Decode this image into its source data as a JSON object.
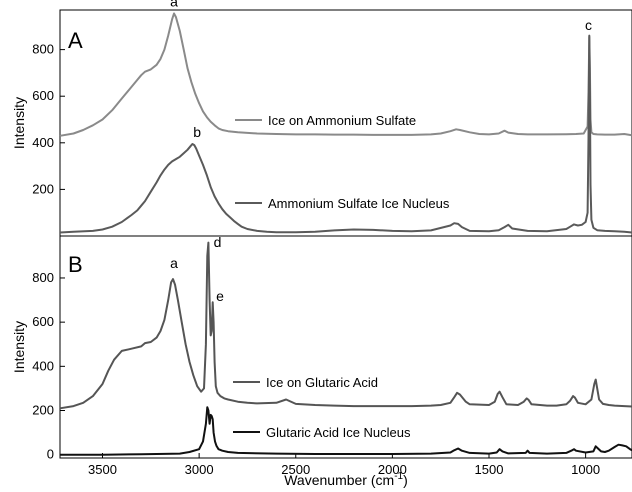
{
  "chart_data": [
    {
      "type": "line",
      "panel_label": "A",
      "xlabel": "Wavenumber (cm",
      "xlabel_sup": "-1",
      "xlabel_end": ")",
      "ylabel": "Intensity",
      "xlim": [
        3720,
        760
      ],
      "x_reversed": true,
      "ylim": [
        0,
        970
      ],
      "yticks": [
        200,
        400,
        600,
        800
      ],
      "grid": false,
      "series": [
        {
          "name": "Ice on Ammonium Sulfate",
          "color": "#8a8a8a",
          "x": [
            3720,
            3650,
            3600,
            3550,
            3500,
            3450,
            3400,
            3350,
            3320,
            3300,
            3280,
            3250,
            3220,
            3200,
            3180,
            3160,
            3140,
            3130,
            3120,
            3100,
            3080,
            3060,
            3040,
            3020,
            3000,
            2980,
            2960,
            2940,
            2920,
            2900,
            2880,
            2850,
            2800,
            2700,
            2600,
            2500,
            2400,
            2300,
            2200,
            2100,
            2000,
            1900,
            1800,
            1750,
            1700,
            1670,
            1650,
            1600,
            1550,
            1500,
            1450,
            1420,
            1400,
            1350,
            1300,
            1200,
            1100,
            1050,
            1010,
            990,
            985,
            981,
            978,
            975,
            970,
            960,
            940,
            900,
            850,
            800,
            760
          ],
          "y": [
            430,
            440,
            455,
            475,
            500,
            540,
            590,
            640,
            670,
            690,
            705,
            715,
            735,
            760,
            800,
            860,
            930,
            955,
            940,
            880,
            800,
            720,
            660,
            610,
            570,
            535,
            510,
            490,
            475,
            462,
            455,
            450,
            445,
            440,
            438,
            436,
            436,
            435,
            435,
            434,
            434,
            434,
            436,
            440,
            450,
            458,
            455,
            445,
            438,
            436,
            440,
            452,
            444,
            438,
            436,
            436,
            437,
            438,
            440,
            470,
            620,
            855,
            720,
            500,
            445,
            438,
            436,
            435,
            435,
            438,
            432
          ]
        },
        {
          "name": "Ammonium Sulfate Ice Nucleus",
          "color": "#5a5a5a",
          "x": [
            3720,
            3650,
            3550,
            3500,
            3450,
            3400,
            3350,
            3320,
            3300,
            3280,
            3250,
            3220,
            3200,
            3180,
            3160,
            3140,
            3120,
            3100,
            3080,
            3060,
            3045,
            3035,
            3025,
            3015,
            3000,
            2980,
            2960,
            2940,
            2920,
            2900,
            2880,
            2860,
            2840,
            2820,
            2800,
            2780,
            2750,
            2700,
            2650,
            2600,
            2500,
            2400,
            2300,
            2200,
            2100,
            2000,
            1900,
            1800,
            1700,
            1680,
            1660,
            1640,
            1600,
            1500,
            1450,
            1420,
            1400,
            1380,
            1300,
            1200,
            1100,
            1080,
            1060,
            1040,
            1020,
            1000,
            990,
            985,
            981,
            978,
            975,
            970,
            960,
            940,
            900,
            850,
            800,
            760
          ],
          "y": [
            15,
            18,
            22,
            28,
            40,
            60,
            90,
            110,
            130,
            150,
            190,
            230,
            260,
            285,
            305,
            320,
            330,
            340,
            355,
            370,
            385,
            395,
            390,
            375,
            345,
            305,
            260,
            210,
            170,
            140,
            115,
            95,
            80,
            65,
            52,
            40,
            30,
            22,
            18,
            16,
            16,
            18,
            24,
            28,
            26,
            22,
            20,
            24,
            45,
            55,
            52,
            38,
            22,
            20,
            25,
            38,
            48,
            32,
            22,
            20,
            30,
            40,
            50,
            45,
            48,
            60,
            100,
            420,
            860,
            620,
            220,
            70,
            35,
            25,
            22,
            20,
            18,
            15
          ]
        }
      ],
      "peak_labels": [
        {
          "text": "a",
          "x": 3130,
          "y": 985
        },
        {
          "text": "b",
          "x": 3010,
          "y": 425
        },
        {
          "text": "c",
          "x": 985,
          "y": 885
        }
      ]
    },
    {
      "type": "line",
      "panel_label": "B",
      "xlabel": "Wavenumber (cm",
      "xlabel_sup": "-1",
      "xlabel_end": ")",
      "ylabel": "Intensity",
      "xlim": [
        3720,
        760
      ],
      "x_reversed": true,
      "xticks": [
        3500,
        3000,
        2500,
        2000,
        1500,
        1000
      ],
      "ylim": [
        -15,
        990
      ],
      "yticks": [
        0,
        200,
        400,
        600,
        800
      ],
      "grid": false,
      "series": [
        {
          "name": "Ice on Glutaric Acid",
          "color": "#555555",
          "x": [
            3720,
            3650,
            3600,
            3550,
            3500,
            3470,
            3440,
            3400,
            3350,
            3300,
            3280,
            3250,
            3220,
            3200,
            3180,
            3160,
            3145,
            3135,
            3125,
            3110,
            3090,
            3070,
            3050,
            3030,
            3010,
            2990,
            2975,
            2965,
            2958,
            2952,
            2946,
            2940,
            2935,
            2930,
            2925,
            2920,
            2914,
            2905,
            2890,
            2870,
            2850,
            2800,
            2750,
            2700,
            2600,
            2550,
            2500,
            2400,
            2300,
            2200,
            2100,
            2000,
            1900,
            1800,
            1750,
            1700,
            1680,
            1665,
            1650,
            1620,
            1600,
            1500,
            1470,
            1455,
            1445,
            1430,
            1410,
            1350,
            1320,
            1305,
            1295,
            1280,
            1200,
            1150,
            1100,
            1080,
            1065,
            1055,
            1040,
            1000,
            970,
            955,
            948,
            940,
            930,
            910,
            880,
            850,
            800,
            760
          ],
          "y": [
            210,
            220,
            235,
            265,
            320,
            380,
            430,
            470,
            480,
            490,
            505,
            510,
            530,
            560,
            610,
            700,
            780,
            795,
            770,
            700,
            600,
            500,
            420,
            360,
            310,
            285,
            300,
            500,
            900,
            960,
            700,
            540,
            560,
            690,
            600,
            420,
            310,
            280,
            265,
            255,
            250,
            240,
            235,
            232,
            235,
            250,
            230,
            225,
            222,
            220,
            220,
            220,
            220,
            222,
            225,
            235,
            260,
            280,
            272,
            240,
            228,
            225,
            240,
            275,
            285,
            260,
            228,
            225,
            240,
            255,
            248,
            228,
            222,
            222,
            228,
            245,
            265,
            258,
            235,
            228,
            250,
            320,
            340,
            300,
            250,
            230,
            225,
            222,
            220,
            218
          ]
        },
        {
          "name": "Glutaric Acid Ice Nucleus",
          "color": "#111111",
          "x": [
            3720,
            3500,
            3300,
            3100,
            3050,
            3000,
            2980,
            2965,
            2958,
            2952,
            2946,
            2940,
            2935,
            2930,
            2925,
            2918,
            2910,
            2900,
            2880,
            2850,
            2800,
            2600,
            2400,
            2200,
            2000,
            1800,
            1700,
            1680,
            1660,
            1640,
            1600,
            1500,
            1460,
            1445,
            1430,
            1400,
            1310,
            1300,
            1290,
            1200,
            1100,
            1070,
            1060,
            1050,
            1000,
            960,
            948,
            938,
            920,
            900,
            880,
            850,
            830,
            810,
            790,
            770,
            760
          ],
          "y": [
            0,
            0,
            2,
            5,
            12,
            25,
            60,
            140,
            215,
            200,
            140,
            180,
            175,
            160,
            100,
            60,
            40,
            25,
            18,
            12,
            8,
            5,
            3,
            3,
            3,
            5,
            10,
            20,
            28,
            18,
            8,
            5,
            10,
            25,
            15,
            6,
            8,
            18,
            8,
            5,
            8,
            20,
            25,
            18,
            10,
            15,
            38,
            30,
            15,
            12,
            18,
            35,
            45,
            42,
            38,
            25,
            20
          ]
        }
      ],
      "peak_labels": [
        {
          "text": "a",
          "x": 3130,
          "y": 845
        },
        {
          "text": "d",
          "x": 2905,
          "y": 940
        },
        {
          "text": "e",
          "x": 2892,
          "y": 695
        }
      ]
    }
  ]
}
